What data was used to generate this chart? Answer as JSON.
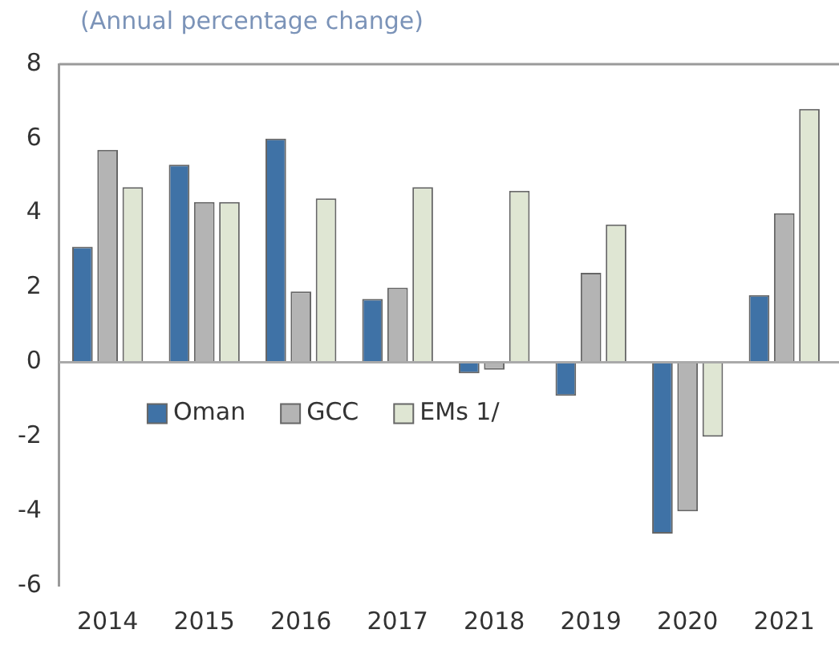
{
  "chart_data": {
    "type": "bar",
    "title": "(Annual percentage change)",
    "categories": [
      "2014",
      "2015",
      "2016",
      "2017",
      "2018",
      "2019",
      "2020",
      "2021"
    ],
    "series": [
      {
        "name": "Oman",
        "color": "#3f72a6",
        "values": [
          3.1,
          5.3,
          6.0,
          1.7,
          -0.3,
          -0.9,
          -4.6,
          1.8
        ]
      },
      {
        "name": "GCC",
        "color": "#b4b4b4",
        "values": [
          5.7,
          4.3,
          1.9,
          2.0,
          -0.2,
          2.4,
          -4.0,
          4.0
        ]
      },
      {
        "name": "EMs 1/",
        "color": "#dfe6d3",
        "values": [
          4.7,
          4.3,
          4.4,
          4.7,
          4.6,
          3.7,
          -2.0,
          6.8
        ]
      }
    ],
    "ylim": [
      -6,
      8
    ],
    "yticks": [
      -6,
      -4,
      -2,
      0,
      2,
      4,
      6,
      8
    ],
    "grid": false,
    "ref_lines": [
      {
        "axis": "y",
        "value": 0,
        "color": "#aaaaaa"
      }
    ],
    "legend": "bottom left"
  }
}
